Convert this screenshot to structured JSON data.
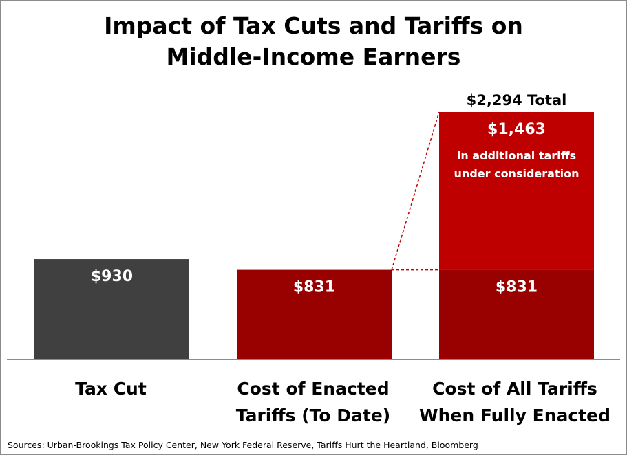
{
  "title_lines": [
    "Impact of Tax Cuts and Tariffs on",
    "Middle-Income Earners"
  ],
  "source": "Sources: Urban-Brookings Tax Policy Center, New York Federal Reserve, Tariffs Hurt the Heartland, Bloomberg",
  "chart_data": {
    "type": "bar",
    "title": "Impact of Tax Cuts and Tariffs on Middle-Income Earners",
    "categories": [
      [
        "Tax Cut"
      ],
      [
        "Cost of Enacted",
        "Tariffs (To Date)"
      ],
      [
        "Cost of All Tariffs",
        "When Fully Enacted"
      ]
    ],
    "bars": [
      {
        "category_index": 0,
        "segments": [
          {
            "value": 930,
            "label": "$930",
            "color": "#404040"
          }
        ]
      },
      {
        "category_index": 1,
        "segments": [
          {
            "value": 831,
            "label": "$831",
            "color": "#990000"
          }
        ]
      },
      {
        "category_index": 2,
        "segments": [
          {
            "value": 831,
            "label": "$831",
            "color": "#990000"
          },
          {
            "value": 1463,
            "label": "$1,463",
            "color": "#bf0000",
            "note_lines": [
              "in additional tariffs",
              "under consideration"
            ]
          }
        ]
      }
    ],
    "total_label": "$2,294 Total",
    "total": 2294,
    "ylim": [
      0,
      2294
    ],
    "grid": false,
    "legend": "none",
    "connector_color": "#c00000",
    "text_color_on_bars": "#ffffff"
  }
}
